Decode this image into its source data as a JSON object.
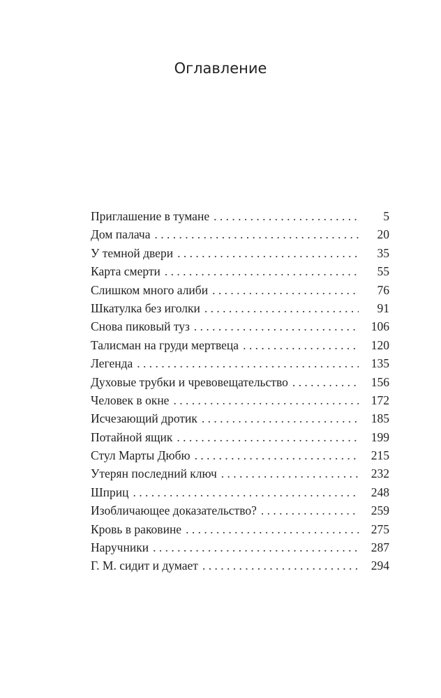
{
  "title": "Оглавление",
  "entries": [
    {
      "title": "Приглашение в тумане",
      "page": "5"
    },
    {
      "title": "Дом палача",
      "page": "20"
    },
    {
      "title": "У темной двери",
      "page": "35"
    },
    {
      "title": "Карта смерти",
      "page": "55"
    },
    {
      "title": "Слишком много алиби",
      "page": "76"
    },
    {
      "title": "Шкатулка без иголки",
      "page": "91"
    },
    {
      "title": "Снова пиковый туз",
      "page": "106"
    },
    {
      "title": "Талисман на груди мертвеца",
      "page": "120"
    },
    {
      "title": "Легенда",
      "page": "135"
    },
    {
      "title": "Духовые трубки и чревовещательство",
      "page": "156"
    },
    {
      "title": "Человек в окне",
      "page": "172"
    },
    {
      "title": "Исчезающий дротик",
      "page": "185"
    },
    {
      "title": "Потайной ящик",
      "page": "199"
    },
    {
      "title": "Стул Марты Дюбю",
      "page": "215"
    },
    {
      "title": "Утерян последний ключ",
      "page": "232"
    },
    {
      "title": "Шприц",
      "page": "248"
    },
    {
      "title": "Изобличающее доказательство?",
      "page": "259"
    },
    {
      "title": "Кровь в раковине",
      "page": "275"
    },
    {
      "title": "Наручники",
      "page": "287"
    },
    {
      "title": "Г. М. сидит и думает",
      "page": "294"
    }
  ]
}
